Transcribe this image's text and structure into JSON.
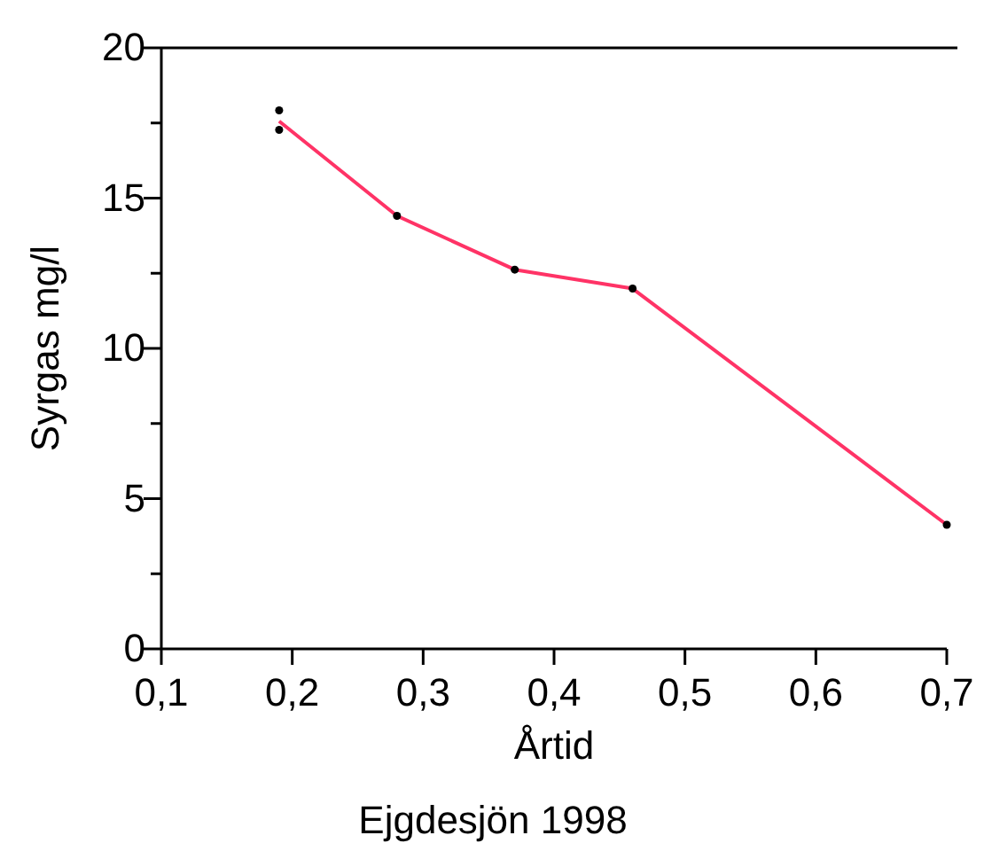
{
  "chart_data": {
    "type": "scatter",
    "xlabel": "Årtid",
    "ylabel": "Syrgas mg/l",
    "annotations": [
      "Ejgdesjön 1998"
    ],
    "xlim": [
      0.1,
      0.7
    ],
    "xticks": [
      {
        "value": 0.1,
        "label": "0,1"
      },
      {
        "value": 0.2,
        "label": "0,2"
      },
      {
        "value": 0.3,
        "label": "0,3"
      },
      {
        "value": 0.4,
        "label": "0,4"
      },
      {
        "value": 0.5,
        "label": "0,5"
      },
      {
        "value": 0.6,
        "label": "0,6"
      },
      {
        "value": 0.7,
        "label": "0,7"
      }
    ],
    "ylim": [
      0,
      20
    ],
    "yticks": [
      0,
      {
        "value": 2.5,
        "label": null
      },
      5,
      {
        "value": 7.5,
        "label": null
      },
      10,
      {
        "value": 12.5,
        "label": null
      },
      15,
      {
        "value": 17.5,
        "label": null
      },
      20
    ],
    "grid": false,
    "series": [
      {
        "color": "#000000",
        "marker": "circle",
        "x": [
          0.19,
          0.19,
          0.28,
          0.37,
          0.46,
          0.7
        ],
        "values": [
          17.92,
          17.27,
          14.41,
          12.62,
          11.99,
          4.13
        ]
      },
      {
        "type": "line",
        "color": "#ff3366",
        "marker": "none",
        "line_style": "solid",
        "x": [
          0.19,
          0.28,
          0.37,
          0.46,
          0.7
        ],
        "values": [
          17.56,
          14.41,
          12.62,
          11.99,
          4.13
        ]
      }
    ]
  }
}
